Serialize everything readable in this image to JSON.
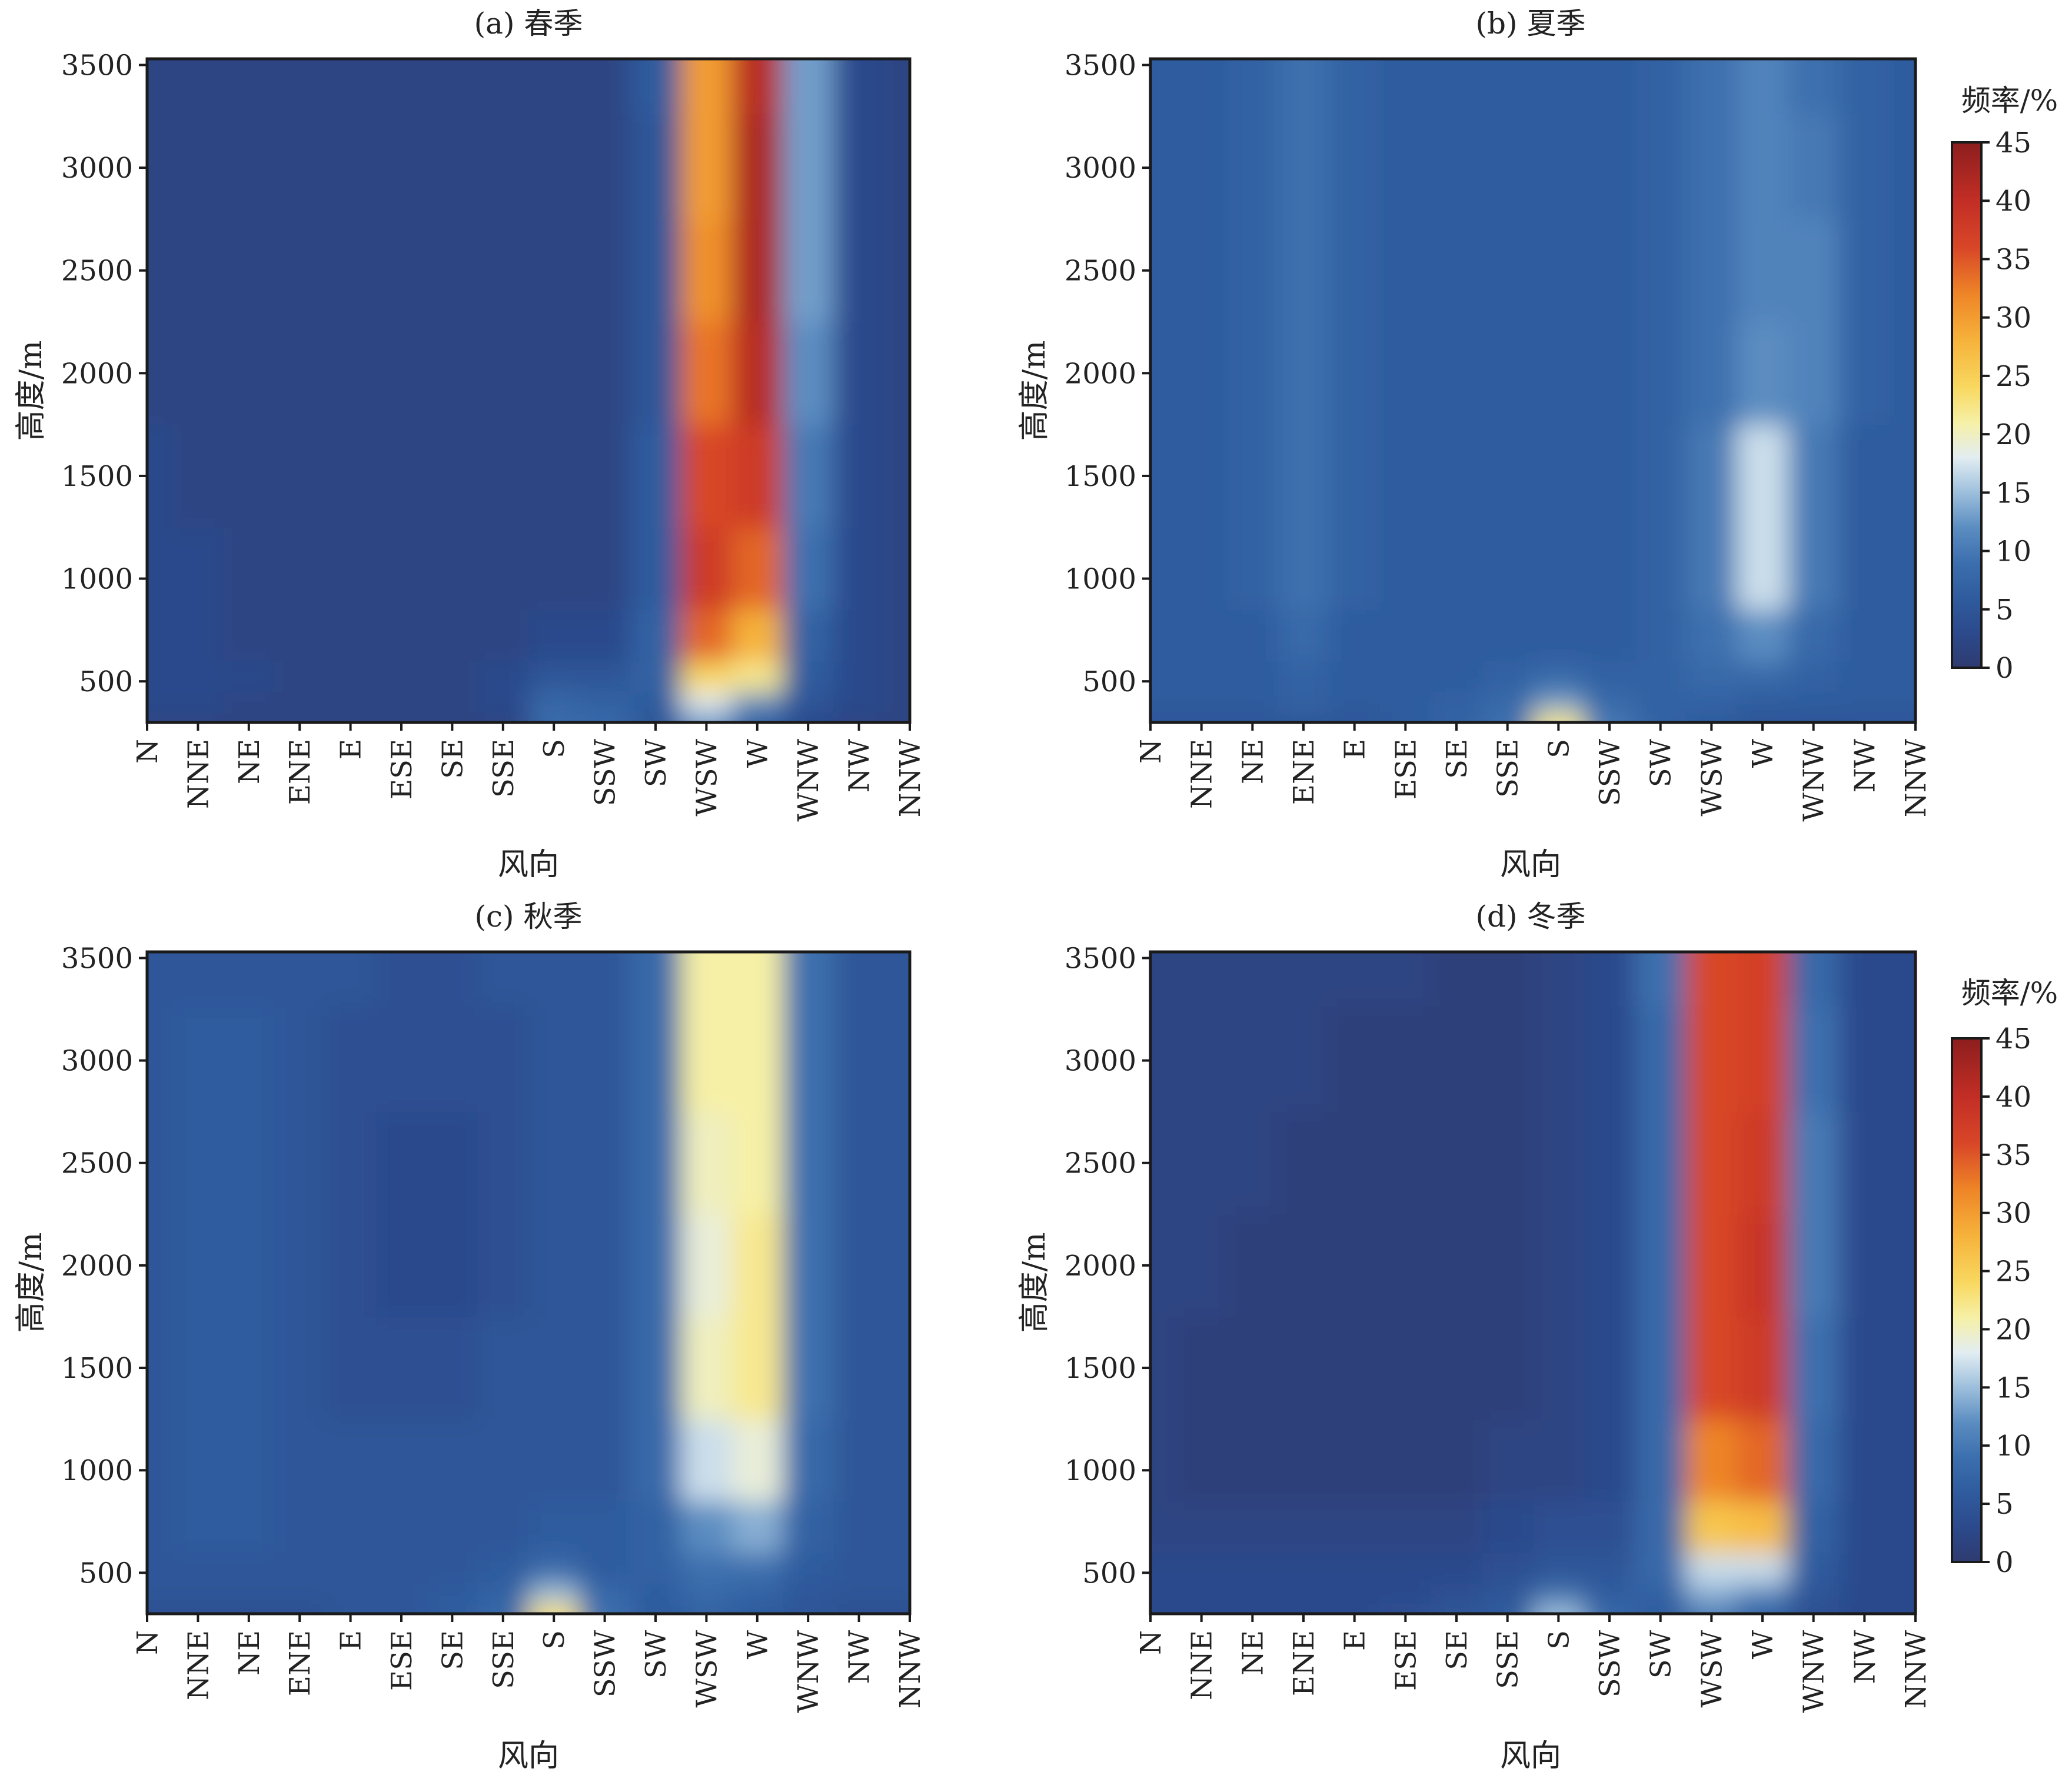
{
  "chart_data": [
    {
      "type": "heatmap",
      "title": "(a) 春季",
      "xlabel": "风向",
      "ylabel": "高度/m",
      "x_categories": [
        "N",
        "NNE",
        "NE",
        "ENE",
        "E",
        "ESE",
        "SE",
        "SSE",
        "S",
        "SSW",
        "SW",
        "WSW",
        "W",
        "WNW",
        "NW",
        "NNW"
      ],
      "yticks": [
        500,
        1000,
        1500,
        2000,
        2500,
        3000,
        3500
      ],
      "ylim": [
        300,
        3530
      ],
      "grid": false,
      "z_label": "频率/%",
      "z_range": [
        0,
        45
      ],
      "heights": [
        300,
        400,
        500,
        700,
        1000,
        1500,
        2000,
        2500,
        3000,
        3530
      ],
      "values": [
        [
          2,
          2,
          2,
          2,
          2,
          2,
          2,
          2,
          8,
          8,
          5,
          12,
          6,
          3,
          2,
          2
        ],
        [
          3,
          3,
          2,
          2,
          2,
          2,
          2,
          3,
          8,
          7,
          6,
          18,
          12,
          5,
          3,
          2
        ],
        [
          3,
          3,
          3,
          2,
          2,
          2,
          2,
          3,
          5,
          5,
          7,
          24,
          22,
          6,
          3,
          2
        ],
        [
          3,
          3,
          2,
          2,
          2,
          2,
          2,
          2,
          3,
          3,
          7,
          34,
          28,
          7,
          3,
          2
        ],
        [
          3,
          3,
          2,
          2,
          2,
          2,
          2,
          2,
          2,
          2,
          6,
          38,
          34,
          9,
          3,
          2
        ],
        [
          3,
          2,
          2,
          2,
          2,
          2,
          2,
          2,
          2,
          2,
          6,
          36,
          38,
          10,
          3,
          2
        ],
        [
          2,
          2,
          2,
          2,
          2,
          2,
          2,
          2,
          2,
          2,
          5,
          33,
          41,
          12,
          3,
          2
        ],
        [
          2,
          2,
          2,
          2,
          2,
          2,
          2,
          2,
          2,
          2,
          5,
          31,
          42,
          13,
          3,
          2
        ],
        [
          2,
          2,
          2,
          2,
          2,
          2,
          2,
          2,
          2,
          2,
          5,
          30,
          42,
          13,
          3,
          2
        ],
        [
          2,
          2,
          2,
          2,
          2,
          2,
          2,
          2,
          2,
          2,
          6,
          30,
          41,
          13,
          3,
          2
        ]
      ]
    },
    {
      "type": "heatmap",
      "title": "(b) 夏季",
      "xlabel": "风向",
      "ylabel": "高度/m",
      "x_categories": [
        "N",
        "NNE",
        "NE",
        "ENE",
        "E",
        "ESE",
        "SE",
        "SSE",
        "S",
        "SSW",
        "SW",
        "WSW",
        "W",
        "WNW",
        "NW",
        "NNW"
      ],
      "yticks": [
        500,
        1000,
        1500,
        2000,
        2500,
        3000,
        3500
      ],
      "ylim": [
        300,
        3530
      ],
      "grid": false,
      "z_label": "频率/%",
      "z_range": [
        0,
        45
      ],
      "heights": [
        300,
        400,
        500,
        700,
        1000,
        1500,
        2000,
        2500,
        3000,
        3530
      ],
      "values": [
        [
          5,
          5,
          5,
          5,
          5,
          6,
          7,
          9,
          22,
          10,
          7,
          6,
          5,
          5,
          5,
          5
        ],
        [
          6,
          6,
          6,
          7,
          6,
          6,
          7,
          8,
          13,
          8,
          7,
          7,
          6,
          6,
          6,
          6
        ],
        [
          6,
          6,
          6,
          7,
          6,
          6,
          6,
          7,
          8,
          7,
          7,
          8,
          8,
          7,
          6,
          6
        ],
        [
          6,
          6,
          6,
          8,
          6,
          6,
          6,
          6,
          6,
          6,
          7,
          9,
          12,
          8,
          6,
          6
        ],
        [
          6,
          6,
          7,
          9,
          7,
          6,
          6,
          6,
          6,
          6,
          7,
          10,
          17,
          10,
          6,
          6
        ],
        [
          6,
          6,
          7,
          9,
          7,
          6,
          6,
          6,
          6,
          6,
          7,
          10,
          17,
          10,
          6,
          6
        ],
        [
          6,
          6,
          7,
          9,
          7,
          6,
          6,
          6,
          6,
          6,
          7,
          9,
          12,
          11,
          7,
          6
        ],
        [
          6,
          6,
          7,
          9,
          7,
          6,
          6,
          6,
          6,
          6,
          7,
          9,
          11,
          11,
          7,
          6
        ],
        [
          6,
          6,
          7,
          9,
          7,
          6,
          6,
          6,
          6,
          6,
          7,
          9,
          11,
          10,
          7,
          6
        ],
        [
          6,
          6,
          7,
          9,
          7,
          6,
          6,
          6,
          6,
          6,
          7,
          9,
          11,
          9,
          7,
          6
        ]
      ]
    },
    {
      "type": "heatmap",
      "title": "(c) 秋季",
      "xlabel": "风向",
      "ylabel": "高度/m",
      "x_categories": [
        "N",
        "NNE",
        "NE",
        "ENE",
        "E",
        "ESE",
        "SE",
        "SSE",
        "S",
        "SSW",
        "SW",
        "WSW",
        "W",
        "WNW",
        "NW",
        "NNW"
      ],
      "yticks": [
        500,
        1000,
        1500,
        2000,
        2500,
        3000,
        3500
      ],
      "ylim": [
        300,
        3530
      ],
      "grid": false,
      "z_label": "频率/%",
      "z_range": [
        0,
        45
      ],
      "heights": [
        300,
        400,
        500,
        700,
        1000,
        1500,
        2000,
        2500,
        3000,
        3530
      ],
      "values": [
        [
          4,
          4,
          4,
          4,
          5,
          5,
          6,
          8,
          23,
          9,
          6,
          7,
          6,
          5,
          4,
          4
        ],
        [
          5,
          5,
          5,
          5,
          5,
          5,
          6,
          7,
          15,
          8,
          6,
          8,
          7,
          5,
          5,
          5
        ],
        [
          5,
          5,
          5,
          5,
          5,
          5,
          5,
          6,
          8,
          6,
          7,
          9,
          9,
          6,
          5,
          5
        ],
        [
          5,
          6,
          6,
          5,
          5,
          5,
          5,
          5,
          6,
          6,
          7,
          12,
          14,
          7,
          5,
          5
        ],
        [
          5,
          6,
          6,
          5,
          5,
          5,
          5,
          5,
          5,
          5,
          8,
          17,
          19,
          8,
          5,
          5
        ],
        [
          5,
          6,
          6,
          5,
          4,
          4,
          4,
          5,
          5,
          5,
          8,
          20,
          22,
          9,
          5,
          5
        ],
        [
          5,
          6,
          6,
          5,
          4,
          3,
          3,
          4,
          5,
          5,
          8,
          19,
          22,
          9,
          5,
          5
        ],
        [
          5,
          6,
          6,
          5,
          4,
          3,
          3,
          4,
          5,
          5,
          8,
          20,
          21,
          9,
          5,
          5
        ],
        [
          5,
          6,
          6,
          5,
          4,
          4,
          4,
          4,
          5,
          5,
          8,
          21,
          21,
          9,
          5,
          5
        ],
        [
          5,
          5,
          5,
          5,
          5,
          4,
          4,
          5,
          5,
          5,
          8,
          21,
          21,
          9,
          5,
          5
        ]
      ]
    },
    {
      "type": "heatmap",
      "title": "(d) 冬季",
      "xlabel": "风向",
      "ylabel": "高度/m",
      "x_categories": [
        "N",
        "NNE",
        "NE",
        "ENE",
        "E",
        "ESE",
        "SE",
        "SSE",
        "S",
        "SSW",
        "SW",
        "WSW",
        "W",
        "WNW",
        "NW",
        "NNW"
      ],
      "yticks": [
        500,
        1000,
        1500,
        2000,
        2500,
        3000,
        3500
      ],
      "ylim": [
        300,
        3530
      ],
      "grid": false,
      "z_label": "频率/%",
      "z_range": [
        0,
        45
      ],
      "heights": [
        300,
        400,
        500,
        700,
        1000,
        1500,
        2000,
        2500,
        3000,
        3530
      ],
      "values": [
        [
          3,
          3,
          3,
          3,
          3,
          4,
          5,
          6,
          15,
          8,
          6,
          10,
          7,
          4,
          3,
          3
        ],
        [
          3,
          3,
          3,
          3,
          3,
          3,
          4,
          5,
          9,
          6,
          7,
          14,
          11,
          5,
          3,
          3
        ],
        [
          3,
          3,
          3,
          3,
          3,
          3,
          3,
          4,
          5,
          5,
          8,
          17,
          17,
          6,
          3,
          3
        ],
        [
          2,
          2,
          2,
          2,
          2,
          2,
          2,
          3,
          4,
          4,
          8,
          26,
          27,
          7,
          3,
          3
        ],
        [
          2,
          1,
          1,
          1,
          1,
          1,
          1,
          2,
          2,
          3,
          8,
          32,
          34,
          8,
          3,
          3
        ],
        [
          2,
          1,
          1,
          1,
          1,
          1,
          1,
          1,
          2,
          3,
          8,
          36,
          38,
          9,
          3,
          3
        ],
        [
          2,
          2,
          1,
          1,
          1,
          1,
          1,
          1,
          2,
          3,
          8,
          36,
          39,
          10,
          3,
          3
        ],
        [
          2,
          2,
          2,
          1,
          1,
          1,
          1,
          1,
          2,
          3,
          8,
          36,
          38,
          10,
          3,
          3
        ],
        [
          2,
          2,
          2,
          2,
          1,
          1,
          1,
          1,
          2,
          3,
          8,
          36,
          37,
          9,
          3,
          3
        ],
        [
          2,
          2,
          2,
          2,
          2,
          2,
          1,
          1,
          2,
          3,
          9,
          36,
          37,
          8,
          3,
          3
        ]
      ]
    }
  ],
  "colorbar": {
    "label": "频率/%",
    "ticks": [
      0,
      5,
      10,
      15,
      20,
      25,
      30,
      35,
      40,
      45
    ],
    "stops": [
      [
        0,
        "#2e3b70"
      ],
      [
        3,
        "#2c4a8c"
      ],
      [
        6,
        "#2f5c9e"
      ],
      [
        9,
        "#3c6fae"
      ],
      [
        12,
        "#5b8dc1"
      ],
      [
        15,
        "#9dbfdc"
      ],
      [
        18,
        "#e2edf2"
      ],
      [
        21,
        "#f6f0a6"
      ],
      [
        24,
        "#f8d860"
      ],
      [
        28,
        "#f6b33b"
      ],
      [
        32,
        "#ee8527"
      ],
      [
        36,
        "#d84628"
      ],
      [
        40,
        "#c22e25"
      ],
      [
        45,
        "#8c1e1e"
      ]
    ]
  }
}
